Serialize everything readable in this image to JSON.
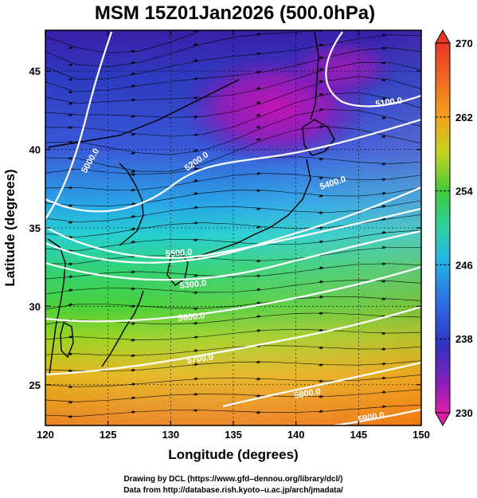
{
  "title": "MSM 15Z01Jan2026 (500.0hPa)",
  "x_axis": {
    "label": "Longitude (degrees)",
    "ticks": [
      "120",
      "125",
      "130",
      "135",
      "140",
      "145",
      "150"
    ]
  },
  "y_axis": {
    "label": "Latitude  (degrees)",
    "ticks": [
      "25",
      "30",
      "35",
      "40",
      "45"
    ]
  },
  "colorbar": {
    "ticks": [
      "270",
      "262",
      "254",
      "246",
      "238",
      "230"
    ]
  },
  "contour_labels": [
    "5000.0",
    "5200.0",
    "5100.0",
    "5400.0",
    "5500.0",
    "5300.0",
    "5600.0",
    "5700.0",
    "5800.0",
    "5900.0"
  ],
  "credits": {
    "line1": "Drawing by DCL (https://www.gfd–dennou.org/library/dcl/)",
    "line2": "Data from http://database.rish.kyoto–u.ac.jp/arch/jmadata/"
  },
  "chart_data": {
    "type": "heatmap",
    "title": "MSM 15Z01Jan2026 (500.0hPa)",
    "xlabel": "Longitude (degrees)",
    "ylabel": "Latitude  (degrees)",
    "xlim": [
      120,
      150
    ],
    "ylim": [
      22.4,
      47.6
    ],
    "colorbar_range": [
      230,
      270
    ],
    "colorbar_ticks": [
      230,
      238,
      246,
      254,
      262,
      270
    ],
    "overlays": [
      "geopotential height contours (white)",
      "wind streamlines with arrows (black)",
      "coastlines (black)"
    ],
    "contours": [
      {
        "label": "5000.0",
        "lon": 123.0,
        "lat": 40.0
      },
      {
        "label": "5200.0",
        "lon": 132.3,
        "lat": 40.7
      },
      {
        "label": "5100.0",
        "lon": 146.5,
        "lat": 43.7
      },
      {
        "label": "5400.0",
        "lon": 143.5,
        "lat": 39.1
      },
      {
        "label": "5500.0",
        "lon": 132.0,
        "lat": 34.0
      },
      {
        "label": "5300.0",
        "lon": 131.8,
        "lat": 32.2
      },
      {
        "label": "5600.0",
        "lon": 131.2,
        "lat": 30.0
      },
      {
        "label": "5700.0",
        "lon": 131.5,
        "lat": 27.2
      },
      {
        "label": "5800.0",
        "lon": 140.0,
        "lat": 24.1
      },
      {
        "label": "5900.0",
        "lon": 144.0,
        "lat": 22.8
      }
    ]
  }
}
